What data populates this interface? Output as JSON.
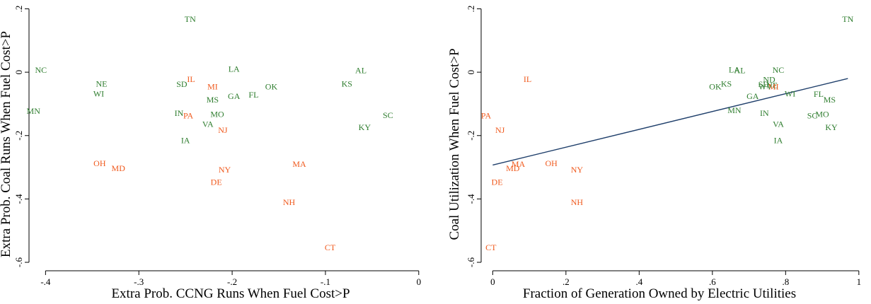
{
  "colors": {
    "green": "#2e7d2e",
    "orange": "#f05a1e",
    "fit": "#1f3f6b"
  },
  "chart_data": [
    {
      "type": "scatter",
      "xlabel": "Extra Prob. CCNG Runs When Fuel Cost>P",
      "ylabel": "Extra Prob. Coal Runs When Fuel Cost>P",
      "xlim": [
        -0.42,
        0.01
      ],
      "ylim": [
        -0.62,
        0.21
      ],
      "xticks": [
        {
          "v": -0.4,
          "label": "-.4"
        },
        {
          "v": -0.3,
          "label": "-.3"
        },
        {
          "v": -0.2,
          "label": "-.2"
        },
        {
          "v": -0.1,
          "label": "-.1"
        },
        {
          "v": 0,
          "label": "0"
        }
      ],
      "yticks": [
        {
          "v": 0.2,
          "label": ".2"
        },
        {
          "v": 0,
          "label": "0"
        },
        {
          "v": -0.2,
          "label": "-.2"
        },
        {
          "v": -0.4,
          "label": "-.4"
        },
        {
          "v": -0.6,
          "label": "-.6"
        }
      ],
      "points": [
        {
          "label": "TN",
          "x": -0.245,
          "y": 0.168,
          "group": "green"
        },
        {
          "label": "NC",
          "x": -0.405,
          "y": 0.007,
          "group": "green"
        },
        {
          "label": "NE",
          "x": -0.34,
          "y": -0.036,
          "group": "green"
        },
        {
          "label": "WI",
          "x": -0.343,
          "y": -0.068,
          "group": "green"
        },
        {
          "label": "MN",
          "x": -0.413,
          "y": -0.122,
          "group": "green"
        },
        {
          "label": "LA",
          "x": -0.198,
          "y": 0.01,
          "group": "green"
        },
        {
          "label": "AL",
          "x": -0.062,
          "y": 0.006,
          "group": "green"
        },
        {
          "label": "KS",
          "x": -0.077,
          "y": -0.036,
          "group": "green"
        },
        {
          "label": "SD",
          "x": -0.254,
          "y": -0.038,
          "group": "green"
        },
        {
          "label": "IL",
          "x": -0.244,
          "y": -0.022,
          "group": "orange"
        },
        {
          "label": "MI",
          "x": -0.221,
          "y": -0.046,
          "group": "orange"
        },
        {
          "label": "OK",
          "x": -0.158,
          "y": -0.045,
          "group": "green"
        },
        {
          "label": "GA",
          "x": -0.198,
          "y": -0.076,
          "group": "green"
        },
        {
          "label": "FL",
          "x": -0.177,
          "y": -0.071,
          "group": "green"
        },
        {
          "label": "MS",
          "x": -0.221,
          "y": -0.087,
          "group": "green"
        },
        {
          "label": "IN",
          "x": -0.257,
          "y": -0.129,
          "group": "green"
        },
        {
          "label": "PA",
          "x": -0.247,
          "y": -0.137,
          "group": "orange"
        },
        {
          "label": "MO",
          "x": -0.216,
          "y": -0.133,
          "group": "green"
        },
        {
          "label": "SC",
          "x": -0.033,
          "y": -0.136,
          "group": "green"
        },
        {
          "label": "VA",
          "x": -0.226,
          "y": -0.164,
          "group": "green"
        },
        {
          "label": "NJ",
          "x": -0.21,
          "y": -0.183,
          "group": "orange"
        },
        {
          "label": "KY",
          "x": -0.058,
          "y": -0.174,
          "group": "green"
        },
        {
          "label": "IA",
          "x": -0.25,
          "y": -0.215,
          "group": "green"
        },
        {
          "label": "OH",
          "x": -0.342,
          "y": -0.288,
          "group": "orange"
        },
        {
          "label": "MD",
          "x": -0.322,
          "y": -0.303,
          "group": "orange"
        },
        {
          "label": "MA",
          "x": -0.128,
          "y": -0.29,
          "group": "orange"
        },
        {
          "label": "NY",
          "x": -0.208,
          "y": -0.308,
          "group": "orange"
        },
        {
          "label": "DE",
          "x": -0.217,
          "y": -0.347,
          "group": "orange"
        },
        {
          "label": "NH",
          "x": -0.139,
          "y": -0.41,
          "group": "orange"
        },
        {
          "label": "CT",
          "x": -0.095,
          "y": -0.553,
          "group": "orange"
        }
      ]
    },
    {
      "type": "scatter",
      "xlabel": "Fraction of Generation Owned by Electric Utilities",
      "ylabel": "Coal Utilization When Fuel Cost>P",
      "xlim": [
        -0.02,
        1.01
      ],
      "ylim": [
        -0.62,
        0.21
      ],
      "xticks": [
        {
          "v": 0,
          "label": "0"
        },
        {
          "v": 0.2,
          "label": ".2"
        },
        {
          "v": 0.4,
          "label": ".4"
        },
        {
          "v": 0.6,
          "label": ".6"
        },
        {
          "v": 0.8,
          "label": ".8"
        },
        {
          "v": 1,
          "label": "1"
        }
      ],
      "yticks": [
        {
          "v": 0.2,
          "label": ".2"
        },
        {
          "v": 0,
          "label": "0"
        },
        {
          "v": -0.2,
          "label": "-.2"
        },
        {
          "v": -0.4,
          "label": "-.4"
        },
        {
          "v": -0.6,
          "label": "-.6"
        }
      ],
      "fit_line": {
        "x": [
          0,
          0.97
        ],
        "y": [
          -0.293,
          -0.02
        ]
      },
      "points": [
        {
          "label": "TN",
          "x": 0.97,
          "y": 0.168,
          "group": "green"
        },
        {
          "label": "LA",
          "x": 0.66,
          "y": 0.008,
          "group": "green"
        },
        {
          "label": "AL",
          "x": 0.675,
          "y": 0.006,
          "group": "green"
        },
        {
          "label": "NC",
          "x": 0.78,
          "y": 0.007,
          "group": "green"
        },
        {
          "label": "ND",
          "x": 0.755,
          "y": -0.023,
          "group": "green"
        },
        {
          "label": "IL",
          "x": 0.095,
          "y": -0.022,
          "group": "orange"
        },
        {
          "label": "KS",
          "x": 0.638,
          "y": -0.036,
          "group": "green"
        },
        {
          "label": "SD",
          "x": 0.74,
          "y": -0.038,
          "group": "green"
        },
        {
          "label": "NE",
          "x": 0.763,
          "y": -0.041,
          "group": "green"
        },
        {
          "label": "MI",
          "x": 0.767,
          "y": -0.046,
          "group": "orange"
        },
        {
          "label": "WV",
          "x": 0.745,
          "y": -0.046,
          "group": "green"
        },
        {
          "label": "OK",
          "x": 0.608,
          "y": -0.045,
          "group": "green"
        },
        {
          "label": "WI",
          "x": 0.812,
          "y": -0.068,
          "group": "green"
        },
        {
          "label": "FL",
          "x": 0.89,
          "y": -0.069,
          "group": "green"
        },
        {
          "label": "GA",
          "x": 0.71,
          "y": -0.076,
          "group": "green"
        },
        {
          "label": "MS",
          "x": 0.92,
          "y": -0.087,
          "group": "green"
        },
        {
          "label": "MN",
          "x": 0.66,
          "y": -0.12,
          "group": "green"
        },
        {
          "label": "IN",
          "x": 0.742,
          "y": -0.129,
          "group": "green"
        },
        {
          "label": "MO",
          "x": 0.9,
          "y": -0.133,
          "group": "green"
        },
        {
          "label": "SC",
          "x": 0.873,
          "y": -0.137,
          "group": "green"
        },
        {
          "label": "PA",
          "x": -0.018,
          "y": -0.137,
          "group": "orange"
        },
        {
          "label": "VA",
          "x": 0.78,
          "y": -0.164,
          "group": "green"
        },
        {
          "label": "KY",
          "x": 0.925,
          "y": -0.174,
          "group": "green"
        },
        {
          "label": "NJ",
          "x": 0.02,
          "y": -0.183,
          "group": "orange"
        },
        {
          "label": "IA",
          "x": 0.78,
          "y": -0.215,
          "group": "green"
        },
        {
          "label": "OH",
          "x": 0.16,
          "y": -0.288,
          "group": "orange"
        },
        {
          "label": "MA",
          "x": 0.07,
          "y": -0.29,
          "group": "orange"
        },
        {
          "label": "MD",
          "x": 0.055,
          "y": -0.303,
          "group": "orange"
        },
        {
          "label": "NY",
          "x": 0.23,
          "y": -0.308,
          "group": "orange"
        },
        {
          "label": "DE",
          "x": 0.012,
          "y": -0.347,
          "group": "orange"
        },
        {
          "label": "NH",
          "x": 0.23,
          "y": -0.41,
          "group": "orange"
        },
        {
          "label": "CT",
          "x": -0.005,
          "y": -0.553,
          "group": "orange"
        }
      ]
    }
  ]
}
